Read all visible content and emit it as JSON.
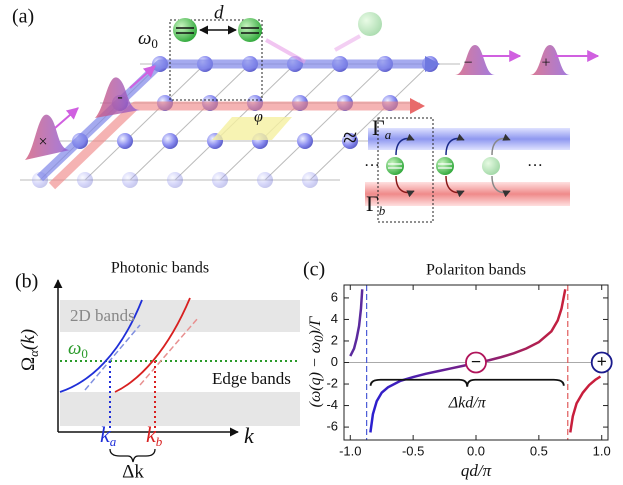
{
  "panel_a": {
    "label": "(a)",
    "omega": {
      "symbol": "ω",
      "sub": "0"
    },
    "spacing": "d",
    "flux": "φ",
    "gamma_a": {
      "symbol": "Γ",
      "sub": "a"
    },
    "gamma_b": {
      "symbol": "Γ",
      "sub": "b"
    },
    "packet_minus": "−",
    "packet_plus": "+",
    "packet_left_minus": "-",
    "packet_left_cross": "×",
    "dots_left": "···",
    "dots_right": "···",
    "cut": "≈"
  },
  "panel_b": {
    "label": "(b)",
    "title": "Photonic bands",
    "bulk": "2D bands",
    "omega": {
      "symbol": "ω",
      "sub": "0"
    },
    "edge": "Edge bands",
    "ylabel": {
      "symbol": "Ω",
      "sub": "α",
      "tail": "(k)"
    },
    "xlabel": "k",
    "ka": {
      "symbol": "k",
      "sub": "a"
    },
    "kb": {
      "symbol": "k",
      "sub": "b"
    },
    "dk": "Δk"
  },
  "chart_data": {
    "type": "line",
    "label": "(c)",
    "title": "Polariton bands",
    "xlabel": "qd/π",
    "ylabel": {
      "main": "(ω(q) − ω",
      "sub": "0",
      "tail": ")/Γ"
    },
    "xlim": [
      -1.05,
      1.05
    ],
    "ylim": [
      -7.2,
      7.2
    ],
    "xticks": [
      {
        "value": -1,
        "label": "-1.0"
      },
      -0.5,
      {
        "value": 0,
        "label": "0.0"
      },
      0.5,
      {
        "value": 1,
        "label": "1.0"
      }
    ],
    "yticks": [
      -6,
      -4,
      -2,
      0,
      2,
      4,
      6
    ],
    "zero_line": true,
    "series": [
      {
        "color": "#5b2a9e",
        "x": [
          -1.0,
          -0.97,
          -0.95,
          -0.93,
          -0.915,
          -0.905
        ],
        "values": [
          0.6,
          1.3,
          2.2,
          3.4,
          5,
          6.8
        ]
      },
      {
        "color": [
          "#2a1fd0",
          "#c8203a"
        ],
        "x": [
          -0.84,
          -0.82,
          -0.79,
          -0.75,
          -0.7,
          -0.6,
          -0.5,
          -0.4,
          -0.3,
          -0.2,
          -0.1,
          0,
          0.1,
          0.2,
          0.3,
          0.4,
          0.5,
          0.6,
          0.65,
          0.68,
          0.71
        ],
        "values": [
          -6.5,
          -4.8,
          -3.6,
          -2.8,
          -2.3,
          -1.7,
          -1.35,
          -1.05,
          -0.8,
          -0.55,
          -0.3,
          -0.05,
          0.2,
          0.5,
          0.85,
          1.3,
          1.9,
          2.9,
          3.9,
          5,
          6.8
        ]
      },
      {
        "color": "#c81e3c",
        "x": [
          0.75,
          0.77,
          0.8,
          0.85,
          0.9,
          0.95,
          0.99
        ],
        "values": [
          -6.5,
          -5,
          -3.8,
          -2.8,
          -2.1,
          -1.6,
          -1.3
        ]
      }
    ],
    "vlines": [
      {
        "x": -0.87,
        "color": "#4a5bd6"
      },
      {
        "x": 0.73,
        "color": "#e05a5a"
      }
    ],
    "brace": {
      "y": -1.6,
      "label": "Δkd/π"
    },
    "annotations": [
      {
        "text": "−",
        "x": 0,
        "y": 0,
        "color": "#b0145a"
      },
      {
        "text": "+",
        "x": 1,
        "y": 0,
        "color": "#1a1a8c"
      }
    ]
  }
}
